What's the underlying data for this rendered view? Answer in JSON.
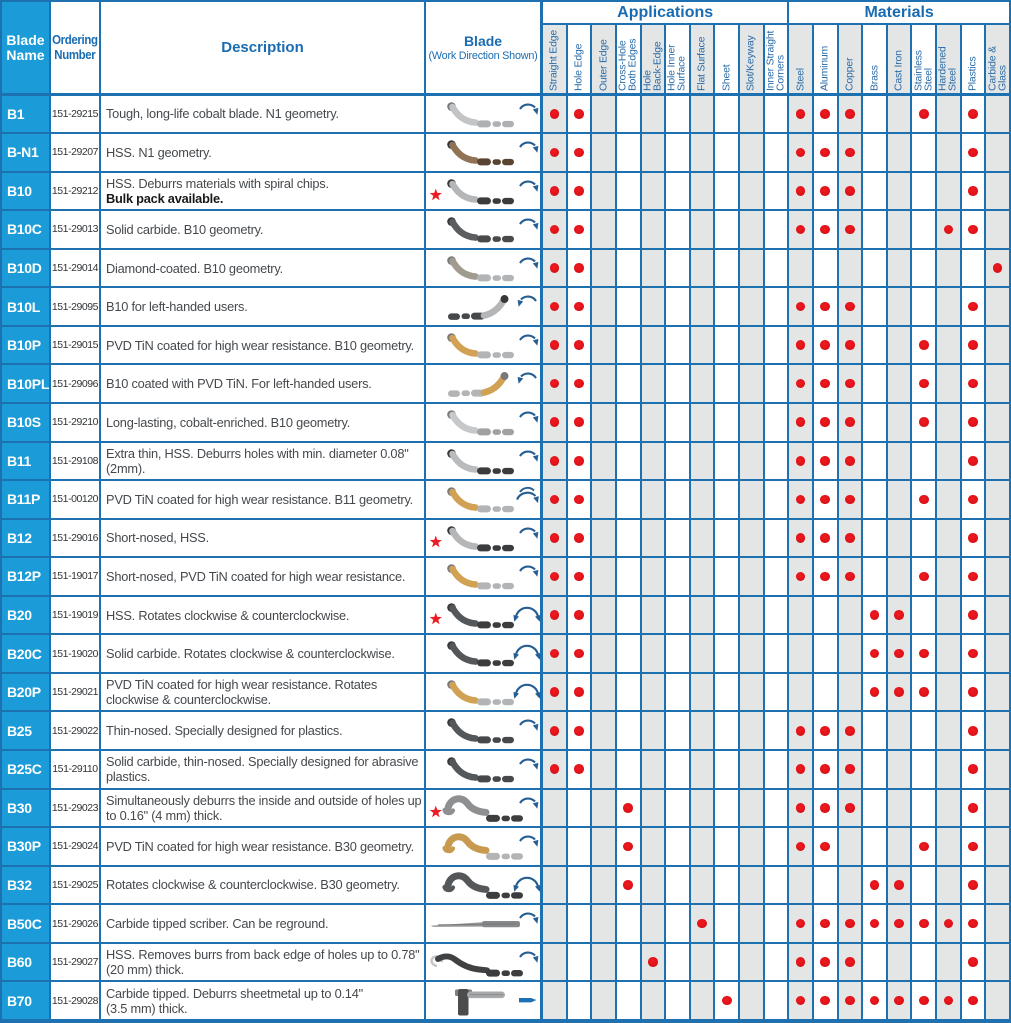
{
  "colors": {
    "grid_blue": "#1e71b0",
    "header_cyan": "#1b9cd8",
    "header_text_blue": "#1a6cb2",
    "column_shade_grey": "#e4e5e5",
    "dot_red": "#e01218",
    "star_red": "#ea1c24",
    "arrow_blue": "#265e93"
  },
  "table": {
    "headers": {
      "blade_name": "Blade\nName",
      "ordering_number": "Ordering\nNumber",
      "description": "Description",
      "blade_title": "Blade",
      "blade_subtitle": "(Work Direction Shown)",
      "applications_title": "Applications",
      "materials_title": "Materials",
      "application_columns": [
        "Straight Edge",
        "Hole Edge",
        "Outer Edge",
        "Cross-Hole\nBoth Edges",
        "Hole\nBack-Edge",
        "Hole Inner\nSurface",
        "Flat Surface",
        "Sheet",
        "Slot/Keyway",
        "Inner Straight\nCorners"
      ],
      "material_columns": [
        "Steel",
        "Aluminum",
        "Copper",
        "Brass",
        "Cast Iron",
        "Stainless\nSteel",
        "Hardened\nSteel",
        "Plastics",
        "Carbide &\nGlass"
      ]
    },
    "rows": [
      {
        "name": "B1",
        "order": "151-29215",
        "desc": "Tough, long-life cobalt blade. N1 geometry.",
        "note": "",
        "star": false,
        "blade": "s",
        "body": "#c2c4c6",
        "tail": "#aeb0b2",
        "arrow": "cw",
        "apps": [
          0,
          1
        ],
        "mats": [
          0,
          1,
          2,
          5,
          7
        ]
      },
      {
        "name": "B-N1",
        "order": "151-29207",
        "desc": "HSS. N1 geometry.",
        "note": "",
        "star": false,
        "blade": "s",
        "body": "#8f7354",
        "tail": "#5a4431",
        "arrow": "cw",
        "apps": [
          0,
          1
        ],
        "mats": [
          0,
          1,
          2,
          7
        ]
      },
      {
        "name": "B10",
        "order": "151-29212",
        "desc": "HSS. Deburrs materials with spiral chips.",
        "note": "Bulk pack available.",
        "star": true,
        "blade": "s",
        "body": "#b4b6b8",
        "tail": "#3a3c3e",
        "arrow": "cw",
        "apps": [
          0,
          1
        ],
        "mats": [
          0,
          1,
          2,
          7
        ]
      },
      {
        "name": "B10C",
        "order": "151-29013",
        "desc": "Solid carbide. B10 geometry.",
        "note": "",
        "star": false,
        "blade": "s",
        "body": "#5b5e60",
        "tail": "#484a4c",
        "arrow": "cw",
        "apps": [
          0,
          1
        ],
        "mats": [
          0,
          1,
          2,
          6,
          7
        ]
      },
      {
        "name": "B10D",
        "order": "151-29014",
        "desc": "Diamond-coated. B10 geometry.",
        "note": "",
        "star": false,
        "blade": "s",
        "body": "#a19b8f",
        "tail": "#b2b4b6",
        "arrow": "cw",
        "apps": [
          0,
          1
        ],
        "mats": [
          8
        ]
      },
      {
        "name": "B10L",
        "order": "151-29095",
        "desc": "B10 for left-handed users.",
        "note": "",
        "star": false,
        "blade": "sL",
        "body": "#b4b6b8",
        "tail": "#46484a",
        "arrow": "ccw",
        "apps": [
          0,
          1
        ],
        "mats": [
          0,
          1,
          2,
          7
        ]
      },
      {
        "name": "B10P",
        "order": "151-29015",
        "desc": "PVD TiN coated for high wear resistance. B10 geometry.",
        "note": "",
        "star": false,
        "blade": "s",
        "body": "#d2a254",
        "tail": "#b2b4b6",
        "arrow": "cw",
        "apps": [
          0,
          1
        ],
        "mats": [
          0,
          1,
          2,
          5,
          7
        ]
      },
      {
        "name": "B10PL",
        "order": "151-29096",
        "desc": "B10 coated with PVD TiN. For left-handed users.",
        "note": "",
        "star": false,
        "blade": "sL",
        "body": "#d2a254",
        "tail": "#b2b4b6",
        "arrow": "ccw",
        "apps": [
          0,
          1
        ],
        "mats": [
          0,
          1,
          2,
          5,
          7
        ]
      },
      {
        "name": "B10S",
        "order": "151-29210",
        "desc": "Long-lasting, cobalt-enriched. B10 geometry.",
        "note": "",
        "star": false,
        "blade": "s",
        "body": "#c6c8ca",
        "tail": "#9fa1a3",
        "arrow": "cw",
        "apps": [
          0,
          1
        ],
        "mats": [
          0,
          1,
          2,
          5,
          7
        ]
      },
      {
        "name": "B11",
        "order": "151-29108",
        "desc": "Extra thin, HSS. Deburrs holes with min. diameter 0.08\"\n(2mm).",
        "note": "",
        "star": false,
        "blade": "s",
        "body": "#b9bbbd",
        "tail": "#3a3c3e",
        "arrow": "cw",
        "apps": [
          0,
          1
        ],
        "mats": [
          0,
          1,
          2,
          7
        ]
      },
      {
        "name": "B11P",
        "order": "151-00120",
        "desc": "PVD TiN coated for high wear resistance. B11 geometry.",
        "note": "",
        "star": false,
        "blade": "s",
        "body": "#d2a254",
        "tail": "#b2b4b6",
        "arrow": "cw2",
        "apps": [
          0,
          1
        ],
        "mats": [
          0,
          1,
          2,
          5,
          7
        ]
      },
      {
        "name": "B12",
        "order": "151-29016",
        "desc": "Short-nosed, HSS.",
        "note": "",
        "star": true,
        "blade": "s",
        "body": "#b4b6b8",
        "tail": "#3a3c3e",
        "arrow": "cw",
        "apps": [
          0,
          1
        ],
        "mats": [
          0,
          1,
          2,
          7
        ]
      },
      {
        "name": "B12P",
        "order": "151-19017",
        "desc": "Short-nosed, PVD TiN coated for high wear resistance.",
        "note": "",
        "star": false,
        "blade": "s",
        "body": "#d2a254",
        "tail": "#b2b4b6",
        "arrow": "cw",
        "apps": [
          0,
          1
        ],
        "mats": [
          0,
          1,
          2,
          5,
          7
        ]
      },
      {
        "name": "B20",
        "order": "151-19019",
        "desc": "HSS. Rotates clockwise & counterclockwise.",
        "note": "",
        "star": true,
        "blade": "s",
        "body": "#55585a",
        "tail": "#3b3d3f",
        "arrow": "both",
        "apps": [
          0,
          1
        ],
        "mats": [
          3,
          4,
          7
        ]
      },
      {
        "name": "B20C",
        "order": "151-19020",
        "desc": "Solid carbide. Rotates clockwise & counterclockwise.",
        "note": "",
        "star": false,
        "blade": "s",
        "body": "#55585a",
        "tail": "#3b3d3f",
        "arrow": "both",
        "apps": [
          0,
          1
        ],
        "mats": [
          3,
          4,
          5,
          7
        ]
      },
      {
        "name": "B20P",
        "order": "151-29021",
        "desc": "PVD TiN coated for high wear resistance. Rotates\nclockwise & counterclockwise.",
        "note": "",
        "star": false,
        "blade": "s",
        "body": "#d2a254",
        "tail": "#b2b4b6",
        "arrow": "both",
        "apps": [
          0,
          1
        ],
        "mats": [
          3,
          4,
          5,
          7
        ]
      },
      {
        "name": "B25",
        "order": "151-29022",
        "desc": "Thin-nosed. Specially designed for plastics.",
        "note": "",
        "star": false,
        "blade": "s",
        "body": "#55585a",
        "tail": "#46484a",
        "arrow": "cw",
        "apps": [
          0,
          1
        ],
        "mats": [
          0,
          1,
          2,
          7
        ]
      },
      {
        "name": "B25C",
        "order": "151-29110",
        "desc": "Solid carbide, thin-nosed. Specially designed for abrasive\nplastics.",
        "note": "",
        "star": false,
        "blade": "s",
        "body": "#55585a",
        "tail": "#46484a",
        "arrow": "cw",
        "apps": [
          0,
          1
        ],
        "mats": [
          0,
          1,
          2,
          7
        ]
      },
      {
        "name": "B30",
        "order": "151-29023",
        "desc": "Simultaneously deburrs the inside and outside of holes up\nto 0.16\" (4 mm) thick.",
        "note": "",
        "star": true,
        "blade": "hump",
        "body": "#8d8f91",
        "tail": "#3c3e40",
        "arrow": "cw",
        "apps": [
          3
        ],
        "mats": [
          0,
          1,
          2,
          7
        ]
      },
      {
        "name": "B30P",
        "order": "151-29024",
        "desc": "PVD TiN coated for high wear resistance. B30 geometry.",
        "note": "",
        "star": false,
        "blade": "hump",
        "body": "#c89a50",
        "tail": "#b2b4b6",
        "arrow": "cw",
        "apps": [
          3
        ],
        "mats": [
          0,
          1,
          5,
          7
        ]
      },
      {
        "name": "B32",
        "order": "151-29025",
        "desc": "Rotates clockwise & counterclockwise. B30 geometry.",
        "note": "",
        "star": false,
        "blade": "hump",
        "body": "#55585a",
        "tail": "#3b3d3f",
        "arrow": "both",
        "apps": [
          3
        ],
        "mats": [
          3,
          4,
          7
        ]
      },
      {
        "name": "B50C",
        "order": "151-29026",
        "desc": "Carbide tipped scriber. Can be reground.",
        "note": "",
        "star": false,
        "blade": "scriber",
        "body": "#96989a",
        "tail": "#86888a",
        "arrow": "cw",
        "apps": [
          6
        ],
        "mats": [
          0,
          1,
          2,
          3,
          4,
          5,
          6,
          7
        ]
      },
      {
        "name": "B60",
        "order": "151-29027",
        "desc": "HSS. Removes burrs from back edge of holes up to 0.78\"\n(20 mm) thick.",
        "note": "",
        "star": false,
        "blade": "hook",
        "body": "#3f4143",
        "tail": "#3b3d3f",
        "arrow": "cw",
        "apps": [
          4
        ],
        "mats": [
          0,
          1,
          2,
          7
        ]
      },
      {
        "name": "B70",
        "order": "151-29028",
        "desc": "Carbide tipped. Deburrs sheetmetal up to 0.14\"\n(3.5 mm) thick.",
        "note": "",
        "star": false,
        "blade": "L",
        "body": "#4a4c4e",
        "tail": "#a7a9ab",
        "arrow": "right",
        "apps": [
          7
        ],
        "mats": [
          0,
          1,
          2,
          3,
          4,
          5,
          6,
          7
        ]
      }
    ]
  }
}
